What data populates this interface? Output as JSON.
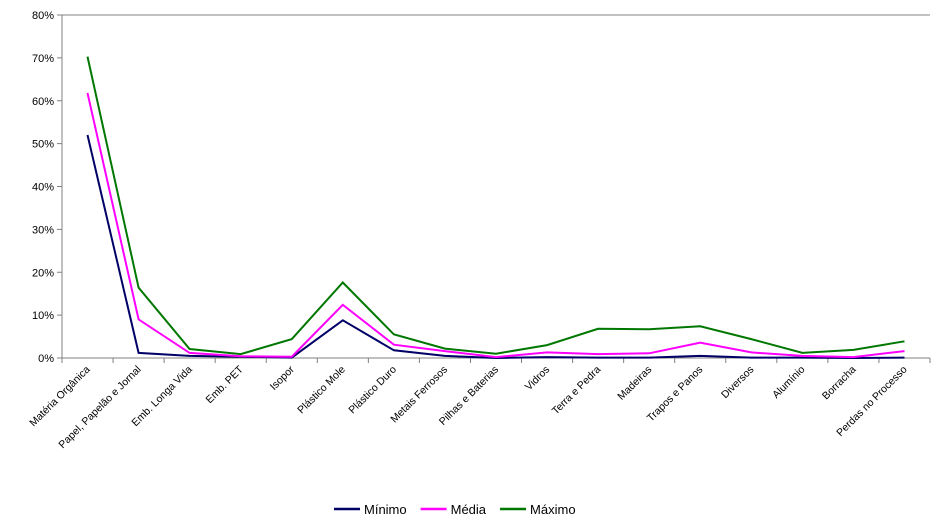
{
  "chart_data": {
    "type": "line",
    "title": "",
    "xlabel": "",
    "ylabel": "",
    "ylim": [
      0,
      80
    ],
    "y_ticks": [
      0,
      10,
      20,
      30,
      40,
      50,
      60,
      70,
      80
    ],
    "y_tick_labels": [
      "0%",
      "10%",
      "20%",
      "30%",
      "40%",
      "50%",
      "60%",
      "70%",
      "80%"
    ],
    "grid": false,
    "legend_position": "bottom",
    "categories": [
      "Matéria Orgânica",
      "Papel, Papelão e Jornal",
      "Emb. Longa Vida",
      "Emb. PET",
      "Isopor",
      "Plástico Mole",
      "Plástico Duro",
      "Metais Ferrosos",
      "Pilhas e Baterias",
      "Vidros",
      "Terra e Pedra",
      "Madeiras",
      "Trapos e Panos",
      "Diversos",
      "Alumínio",
      "Borracha",
      "Perdas no Processo"
    ],
    "series": [
      {
        "name": "Mínimo",
        "color": "#000066",
        "values": [
          52.0,
          1.2,
          0.5,
          0.3,
          0.1,
          8.8,
          1.8,
          0.5,
          0.0,
          0.2,
          0.1,
          0.1,
          0.5,
          0.1,
          0.1,
          0.0,
          0.1
        ]
      },
      {
        "name": "Média",
        "color": "#ff00ff",
        "values": [
          61.8,
          9.0,
          1.2,
          0.4,
          0.3,
          12.4,
          3.1,
          1.6,
          0.2,
          1.3,
          0.9,
          1.1,
          3.6,
          1.3,
          0.5,
          0.2,
          1.6
        ]
      },
      {
        "name": "Máximo",
        "color": "#007700",
        "values": [
          70.3,
          16.4,
          2.1,
          0.9,
          4.4,
          17.6,
          5.5,
          2.2,
          1.0,
          3.0,
          6.8,
          6.7,
          7.4,
          4.4,
          1.2,
          1.9,
          3.9
        ]
      }
    ]
  }
}
